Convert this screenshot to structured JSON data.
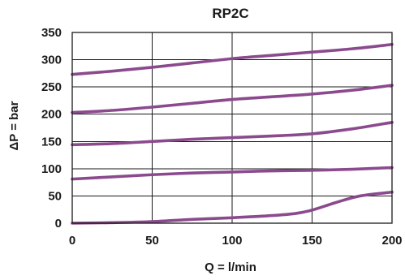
{
  "chart_data": {
    "type": "line",
    "title": "RP2C",
    "xlabel": "Q = l/min",
    "ylabel": "ΔP = bar",
    "xlim": [
      0,
      200
    ],
    "ylim": [
      0,
      350
    ],
    "x_ticks": [
      0,
      50,
      100,
      150,
      200
    ],
    "y_ticks": [
      0,
      50,
      100,
      150,
      200,
      250,
      300,
      350
    ],
    "grid": true,
    "line_color": "#8b4a8e",
    "series": [
      {
        "x": [
          0,
          25,
          50,
          75,
          100,
          125,
          150,
          175,
          200
        ],
        "y": [
          273,
          279,
          286,
          294,
          302,
          308,
          314,
          320,
          328
        ]
      },
      {
        "x": [
          0,
          25,
          50,
          75,
          100,
          125,
          150,
          175,
          200
        ],
        "y": [
          203,
          207,
          213,
          220,
          227,
          232,
          237,
          244,
          253
        ]
      },
      {
        "x": [
          0,
          25,
          50,
          75,
          100,
          125,
          150,
          175,
          200
        ],
        "y": [
          144,
          146,
          150,
          154,
          157,
          160,
          164,
          173,
          185
        ]
      },
      {
        "x": [
          0,
          25,
          50,
          75,
          100,
          125,
          150,
          175,
          200
        ],
        "y": [
          81,
          85,
          89,
          92,
          94,
          96,
          97,
          99,
          102
        ]
      },
      {
        "x": [
          0,
          25,
          50,
          75,
          100,
          125,
          140,
          150,
          165,
          180,
          200
        ],
        "y": [
          0,
          1,
          3,
          7,
          10,
          14,
          18,
          24,
          38,
          50,
          57
        ]
      }
    ]
  }
}
